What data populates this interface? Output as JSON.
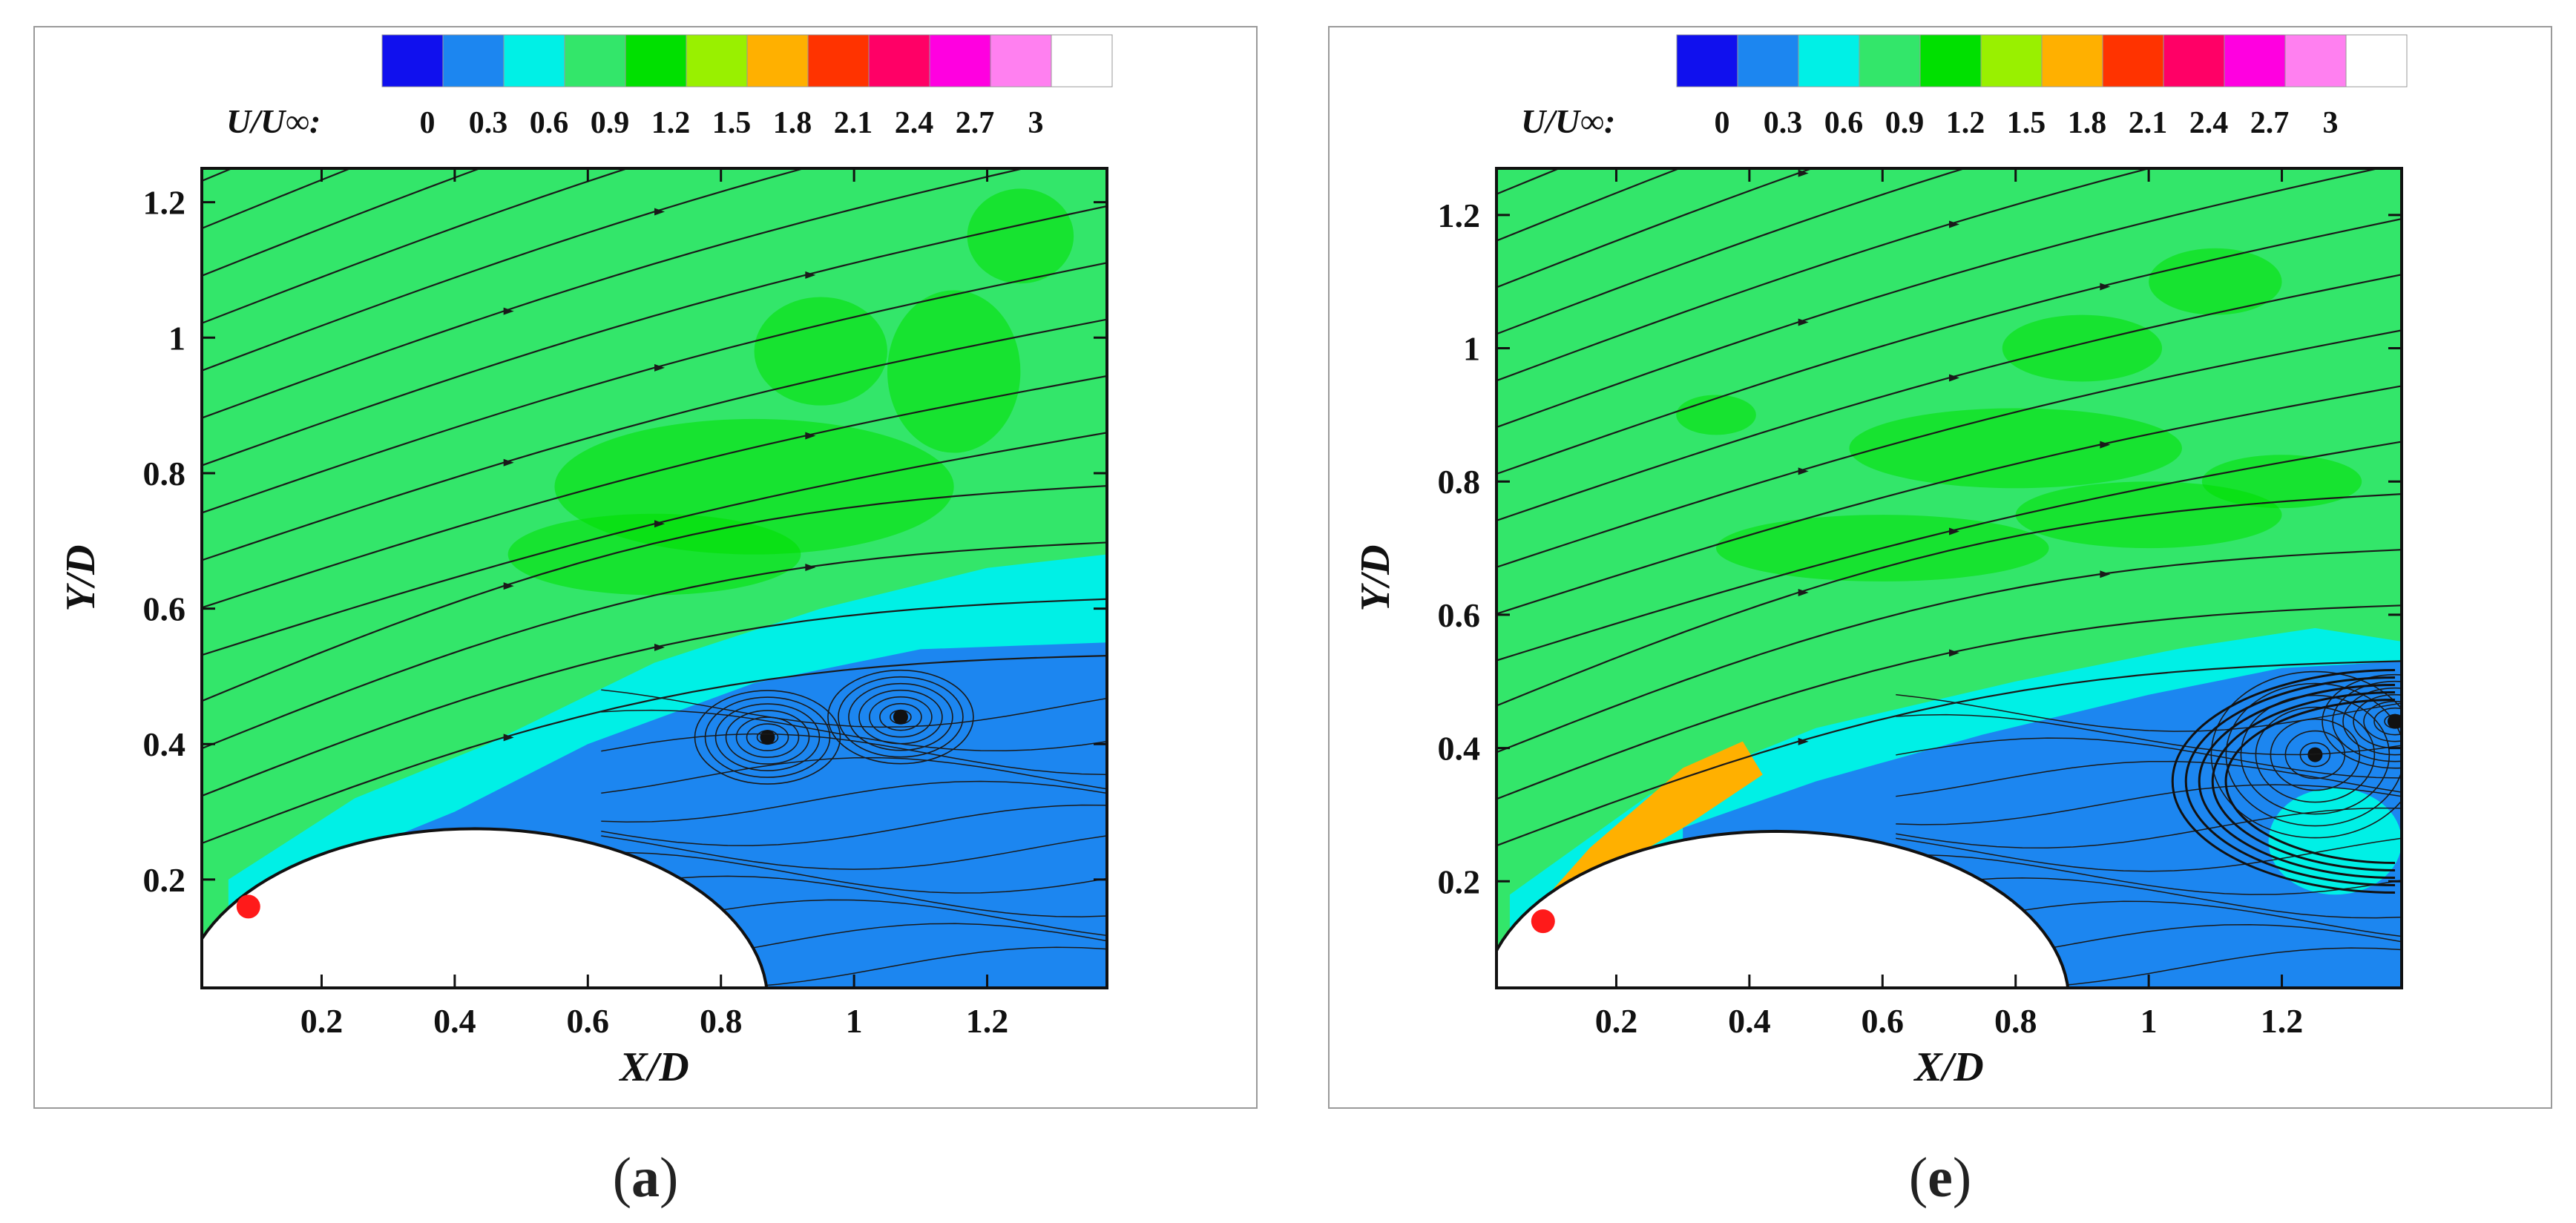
{
  "colorbar": {
    "label": "U/U∞:",
    "ticks": [
      "0",
      "0.3",
      "0.6",
      "0.9",
      "1.2",
      "1.5",
      "1.8",
      "2.1",
      "2.4",
      "2.7",
      "3"
    ],
    "levels": [
      0,
      0.3,
      0.6,
      0.9,
      1.2,
      1.5,
      1.8,
      2.1,
      2.4,
      2.7,
      3
    ],
    "colors": [
      "#1010ee",
      "#1c86f0",
      "#00f0e6",
      "#33e66a",
      "#00e000",
      "#99f000",
      "#ffb000",
      "#ff3300",
      "#ff0066",
      "#ff00e0",
      "#ff80f0",
      "#ffffff"
    ]
  },
  "chart_data": [
    {
      "type": "contour",
      "panel_label": "a",
      "xlabel": "X/D",
      "ylabel": "Y/D",
      "xticks": [
        "0.2",
        "0.4",
        "0.6",
        "0.8",
        "1",
        "1.2"
      ],
      "yticks": [
        "0.2",
        "0.4",
        "0.6",
        "0.8",
        "1",
        "1.2"
      ],
      "xlim": [
        0.02,
        1.38
      ],
      "ylim": [
        0.04,
        1.25
      ],
      "red_marker": {
        "x": 0.09,
        "y": 0.16
      },
      "vortex_centers": [
        {
          "x": 0.87,
          "y": 0.41
        },
        {
          "x": 1.07,
          "y": 0.44
        }
      ],
      "obstacle": {
        "center_x": 0.43,
        "peak_y": 0.29
      },
      "regions": {
        "freestream_level": 0.9,
        "separated_level": 0.3
      }
    },
    {
      "type": "contour",
      "panel_label": "e",
      "xlabel": "X/D",
      "ylabel": "Y/D",
      "xticks": [
        "0.2",
        "0.4",
        "0.6",
        "0.8",
        "1",
        "1.2"
      ],
      "yticks": [
        "0.2",
        "0.4",
        "0.6",
        "0.8",
        "1",
        "1.2"
      ],
      "xlim": [
        0.02,
        1.38
      ],
      "ylim": [
        0.04,
        1.27
      ],
      "red_marker": {
        "x": 0.09,
        "y": 0.14
      },
      "vortex_centers": [
        {
          "x": 1.25,
          "y": 0.39
        },
        {
          "x": 1.37,
          "y": 0.44
        }
      ],
      "obstacle": {
        "center_x": 0.44,
        "peak_y": 0.29
      },
      "regions": {
        "freestream_level": 0.9,
        "separated_level": 0.3,
        "accelerated_level": 1.5
      }
    }
  ],
  "captions": [
    "a",
    "e"
  ]
}
